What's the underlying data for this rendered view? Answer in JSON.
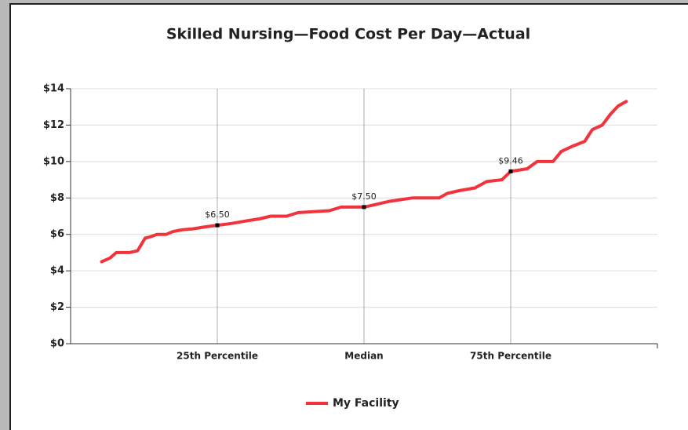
{
  "chart_data": {
    "type": "line",
    "title": "Skilled Nursing—Food Cost Per Day—Actual",
    "xlim": [
      0,
      100
    ],
    "xticks": [
      {
        "value": 25,
        "label": "25th Percentile"
      },
      {
        "value": 50,
        "label": "Median"
      },
      {
        "value": 75,
        "label": "75th Percentile"
      }
    ],
    "ylim": [
      0,
      14
    ],
    "yticks": [
      {
        "value": 0,
        "label": "$0"
      },
      {
        "value": 2,
        "label": "$2"
      },
      {
        "value": 4,
        "label": "$4"
      },
      {
        "value": 6,
        "label": "$6"
      },
      {
        "value": 8,
        "label": "$8"
      },
      {
        "value": 10,
        "label": "$10"
      },
      {
        "value": 12,
        "label": "$12"
      },
      {
        "value": 14,
        "label": "$14"
      }
    ],
    "grid": true,
    "legend": "bottom",
    "series": [
      {
        "name": "My Facility",
        "color": "#f2323c",
        "x": [
          5.3,
          6.7,
          7.8,
          10.0,
          11.4,
          12.7,
          13.4,
          14.7,
          16.3,
          17.4,
          19.0,
          20.7,
          22.7,
          25,
          27.4,
          30.1,
          32.1,
          34.1,
          36.8,
          38.8,
          41.4,
          44.1,
          46.1,
          50,
          52.1,
          54.1,
          56.1,
          58.2,
          62.8,
          64.2,
          66.2,
          68.9,
          70.9,
          73.5,
          75,
          77.8,
          79.5,
          82.2,
          83.6,
          85.6,
          87.6,
          88.9,
          90.6,
          92,
          93.3,
          94.7
        ],
        "values": [
          4.5,
          4.7,
          5.0,
          5.0,
          5.1,
          5.8,
          5.85,
          6.0,
          6.0,
          6.15,
          6.25,
          6.3,
          6.4,
          6.5,
          6.6,
          6.75,
          6.85,
          7.0,
          7.0,
          7.2,
          7.25,
          7.3,
          7.5,
          7.5,
          7.65,
          7.8,
          7.9,
          8.0,
          8.0,
          8.25,
          8.4,
          8.55,
          8.9,
          9.0,
          9.46,
          9.6,
          10.0,
          10.0,
          10.55,
          10.85,
          11.1,
          11.75,
          12.0,
          12.6,
          13.05,
          13.3
        ]
      }
    ],
    "annotations": [
      {
        "x": 25,
        "value": 6.5,
        "value_label": "$6.50"
      },
      {
        "x": 50,
        "value": 7.5,
        "value_label": "$7.50"
      },
      {
        "x": 75,
        "value": 9.46,
        "value_label": "$9.46"
      }
    ]
  }
}
